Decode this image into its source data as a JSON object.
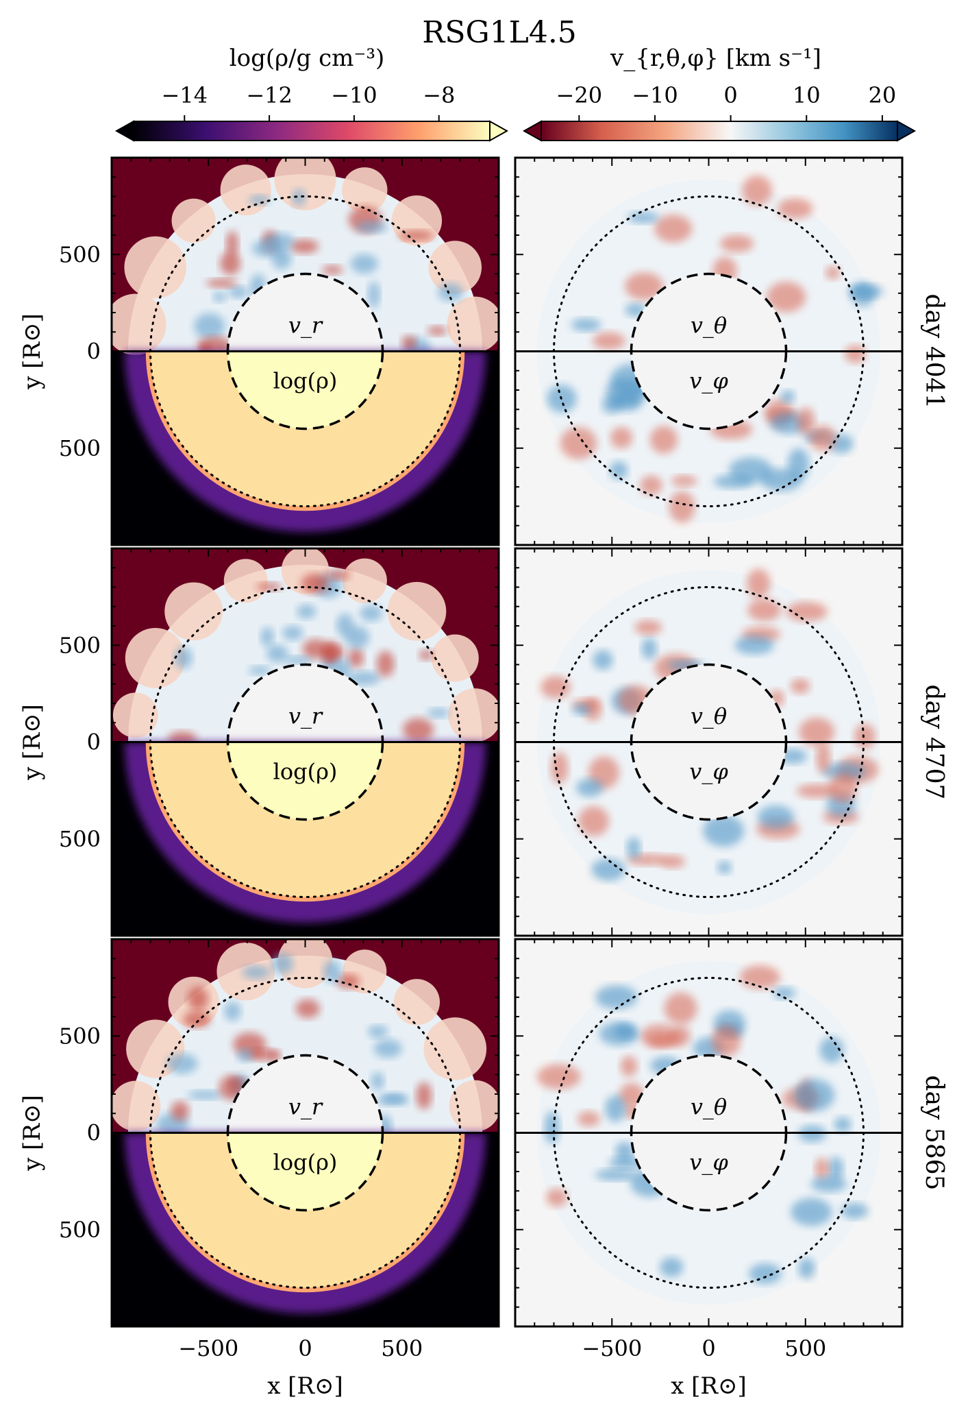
{
  "figure": {
    "title": "RSG1L4.5"
  },
  "colorbars": [
    {
      "label": "log(ρ/g cm⁻³)",
      "ticks": [
        "−14",
        "−12",
        "−10",
        "−8"
      ],
      "tick_values": [
        -14,
        -12,
        -10,
        -8
      ],
      "range": [
        -15.2,
        -6.8
      ],
      "colormap": "magma",
      "colors": [
        "#000004",
        "#3b0f70",
        "#8c2981",
        "#de4968",
        "#fe9f6d",
        "#fcfdbf"
      ]
    },
    {
      "label": "v_{r,θ,φ} [km s⁻¹]",
      "ticks": [
        "−20",
        "−10",
        "0",
        "10",
        "20"
      ],
      "tick_values": [
        -20,
        -10,
        0,
        10,
        20
      ],
      "range": [
        -25,
        22
      ],
      "colormap": "RdBu",
      "colors": [
        "#67001f",
        "#d6604d",
        "#f4a582",
        "#f7f7f7",
        "#92c5de",
        "#4393c3",
        "#053061"
      ]
    }
  ],
  "chart_data": {
    "type": "heatmap",
    "xlabel": "x [R⊙]",
    "ylabel": "y [R⊙]",
    "xlim": [
      -1000,
      1000
    ],
    "ylim": [
      -1000,
      1000
    ],
    "x_ticks": [
      "−500",
      "0",
      "500"
    ],
    "x_tick_values": [
      -500,
      0,
      500
    ],
    "y_ticks": [
      "500",
      "0",
      "500"
    ],
    "y_tick_values": [
      500,
      0,
      -500
    ],
    "inner_circle_radius": 400,
    "outer_circle_radius": 800,
    "rows": [
      {
        "day_label": "day 4041"
      },
      {
        "day_label": "day 4707"
      },
      {
        "day_label": "day 5865"
      }
    ],
    "panel_annotations": {
      "left_top": "v_r",
      "left_bottom": "log(ρ)",
      "right_top": "v_θ",
      "right_bottom": "v_φ"
    }
  }
}
